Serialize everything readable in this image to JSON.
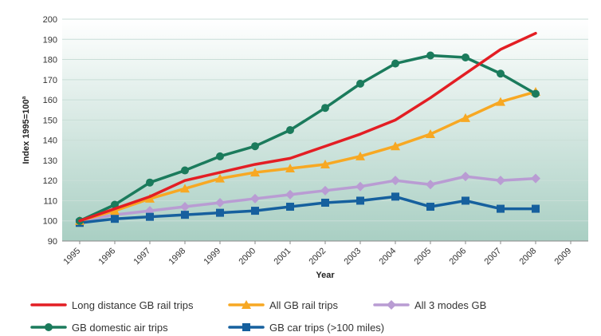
{
  "chart_data": {
    "type": "line",
    "title": "",
    "xlabel": "Year",
    "ylabel": "Index 1995=100",
    "ylabel_superscript": "a",
    "x": [
      "1995",
      "1996",
      "1997",
      "1998",
      "1999",
      "2000",
      "2001",
      "2002",
      "2003",
      "2004",
      "2005",
      "2006",
      "2007",
      "2008",
      "2009"
    ],
    "yticks": [
      90,
      100,
      110,
      120,
      130,
      140,
      150,
      160,
      170,
      180,
      190,
      200
    ],
    "ylim": [
      90,
      200
    ],
    "grid": true,
    "legend_position": "bottom",
    "series": [
      {
        "name": "Long distance GB rail trips",
        "color": "#e31e24",
        "marker": "none",
        "points": [
          [
            1995,
            100
          ],
          [
            1996,
            106
          ],
          [
            1997,
            112
          ],
          [
            1998,
            120
          ],
          [
            1999,
            124
          ],
          [
            2000,
            128
          ],
          [
            2001,
            131
          ],
          [
            2002,
            137
          ],
          [
            2003,
            143
          ],
          [
            2004,
            150
          ],
          [
            2005,
            161
          ],
          [
            2006,
            173
          ],
          [
            2007,
            185
          ],
          [
            2008,
            193
          ]
        ]
      },
      {
        "name": "All GB rail trips",
        "color": "#f7a823",
        "marker": "triangle",
        "points": [
          [
            1995,
            100
          ],
          [
            1996,
            105
          ],
          [
            1997,
            111
          ],
          [
            1998,
            116
          ],
          [
            1999,
            121
          ],
          [
            2000,
            124
          ],
          [
            2001,
            126
          ],
          [
            2002,
            128
          ],
          [
            2003,
            132
          ],
          [
            2004,
            137
          ],
          [
            2005,
            143
          ],
          [
            2006,
            151
          ],
          [
            2007,
            159
          ],
          [
            2008,
            164
          ]
        ]
      },
      {
        "name": "All 3 modes GB",
        "color": "#b99cd3",
        "marker": "diamond",
        "points": [
          [
            1995,
            100
          ],
          [
            1996,
            103
          ],
          [
            1997,
            105
          ],
          [
            1998,
            107
          ],
          [
            1999,
            109
          ],
          [
            2000,
            111
          ],
          [
            2001,
            113
          ],
          [
            2002,
            115
          ],
          [
            2003,
            117
          ],
          [
            2004,
            120
          ],
          [
            2005,
            118
          ],
          [
            2006,
            122
          ],
          [
            2007,
            120
          ],
          [
            2008,
            121
          ]
        ]
      },
      {
        "name": "GB domestic air trips",
        "color": "#1b7b5c",
        "marker": "circle",
        "points": [
          [
            1995,
            100
          ],
          [
            1996,
            108
          ],
          [
            1997,
            119
          ],
          [
            1998,
            125
          ],
          [
            1999,
            132
          ],
          [
            2000,
            137
          ],
          [
            2001,
            145
          ],
          [
            2002,
            156
          ],
          [
            2003,
            168
          ],
          [
            2004,
            178
          ],
          [
            2005,
            182
          ],
          [
            2006,
            181
          ],
          [
            2007,
            173
          ],
          [
            2008,
            163
          ]
        ]
      },
      {
        "name": "GB car trips (>100 miles)",
        "color": "#16609e",
        "marker": "square",
        "points": [
          [
            1995,
            99
          ],
          [
            1996,
            101
          ],
          [
            1997,
            102
          ],
          [
            1998,
            103
          ],
          [
            1999,
            104
          ],
          [
            2000,
            105
          ],
          [
            2001,
            107
          ],
          [
            2002,
            109
          ],
          [
            2003,
            110
          ],
          [
            2004,
            112
          ],
          [
            2005,
            107
          ],
          [
            2006,
            110
          ],
          [
            2007,
            106
          ],
          [
            2008,
            106
          ]
        ]
      }
    ]
  }
}
